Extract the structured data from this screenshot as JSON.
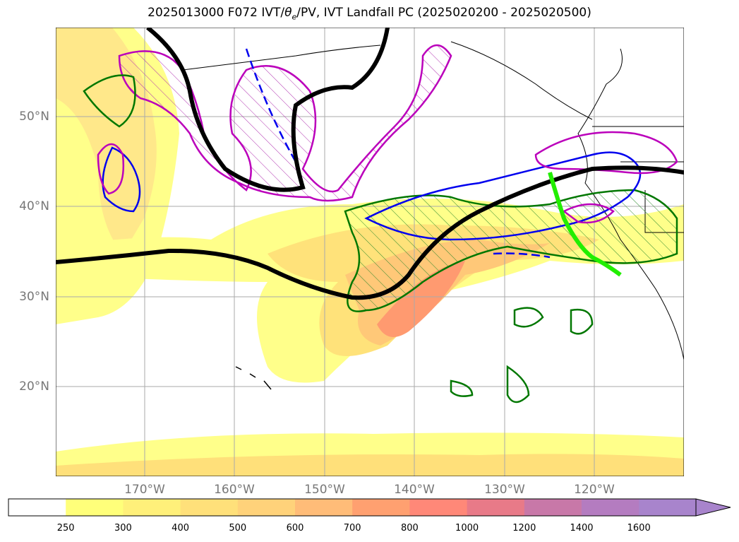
{
  "title": "2025013000 F072 IVT/θe/PV, IVT Landfall PC (2025020200 - 2025020500)",
  "title_parts": {
    "pre": "2025013000 F072 IVT/",
    "theta": "θ",
    "sub": "e",
    "post": "/PV, IVT Landfall PC (2025020200 - 2025020500)"
  },
  "lat_labels": [
    "50°N",
    "40°N",
    "30°N",
    "20°N"
  ],
  "lon_labels": [
    "170°W",
    "160°W",
    "150°W",
    "140°W",
    "130°W",
    "120°W"
  ],
  "colorbar": {
    "levels": [
      "250",
      "300",
      "400",
      "500",
      "600",
      "700",
      "800",
      "1000",
      "1200",
      "1400",
      "1600"
    ],
    "colors": [
      "#ffffff",
      "#ffff7a",
      "#fff07a",
      "#ffe07a",
      "#ffd27a",
      "#ffbc78",
      "#ffa070",
      "#ff8878",
      "#e87a88",
      "#c878a8",
      "#b47cc0",
      "#a884cc"
    ]
  },
  "colors": {
    "theta_contour": "#000000",
    "pv_positive": "#0000ee",
    "pv_magenta": "#bb00bb",
    "green_contour": "#007700",
    "landfall_line": "#22ee00"
  }
}
